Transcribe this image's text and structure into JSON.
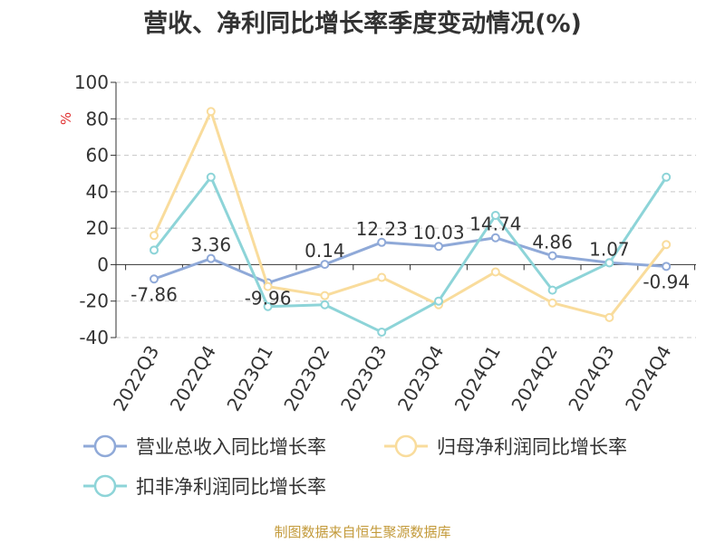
{
  "title": "营收、净利同比增长率季度变动情况(%)",
  "source": "制图数据来自恒生聚源数据库",
  "chart_data": {
    "type": "line",
    "title": "营收、净利同比增长率季度变动情况(%)",
    "ylabel": "%",
    "ylim": [
      -40,
      100
    ],
    "yticks": [
      -40,
      -20,
      0,
      20,
      40,
      60,
      80,
      100
    ],
    "grid": true,
    "legend": "bottom",
    "categories": [
      "2022Q3",
      "2022Q4",
      "2023Q1",
      "2023Q2",
      "2023Q3",
      "2023Q4",
      "2024Q1",
      "2024Q2",
      "2024Q3",
      "2024Q4"
    ],
    "series": [
      {
        "name": "营业总收入同比增长率",
        "color": "#8fa9d8",
        "values": [
          -7.86,
          3.36,
          -9.96,
          0.14,
          12.23,
          10.03,
          14.74,
          4.86,
          1.07,
          -0.94
        ],
        "labels": [
          "-7.86",
          "3.36",
          "-9.96",
          "0.14",
          "12.23",
          "10.03",
          "14.74",
          "4.86",
          "1.07",
          "-0.94"
        ]
      },
      {
        "name": "归母净利润同比增长率",
        "color": "#f9dc9c",
        "values": [
          16,
          84,
          -12,
          -17,
          -7,
          -22,
          -4,
          -21,
          -29,
          11
        ]
      },
      {
        "name": "扣非净利润同比增长率",
        "color": "#8dd4d8",
        "values": [
          8,
          48,
          -23,
          -22,
          -37,
          -20,
          27,
          -14,
          1,
          48
        ]
      }
    ]
  }
}
